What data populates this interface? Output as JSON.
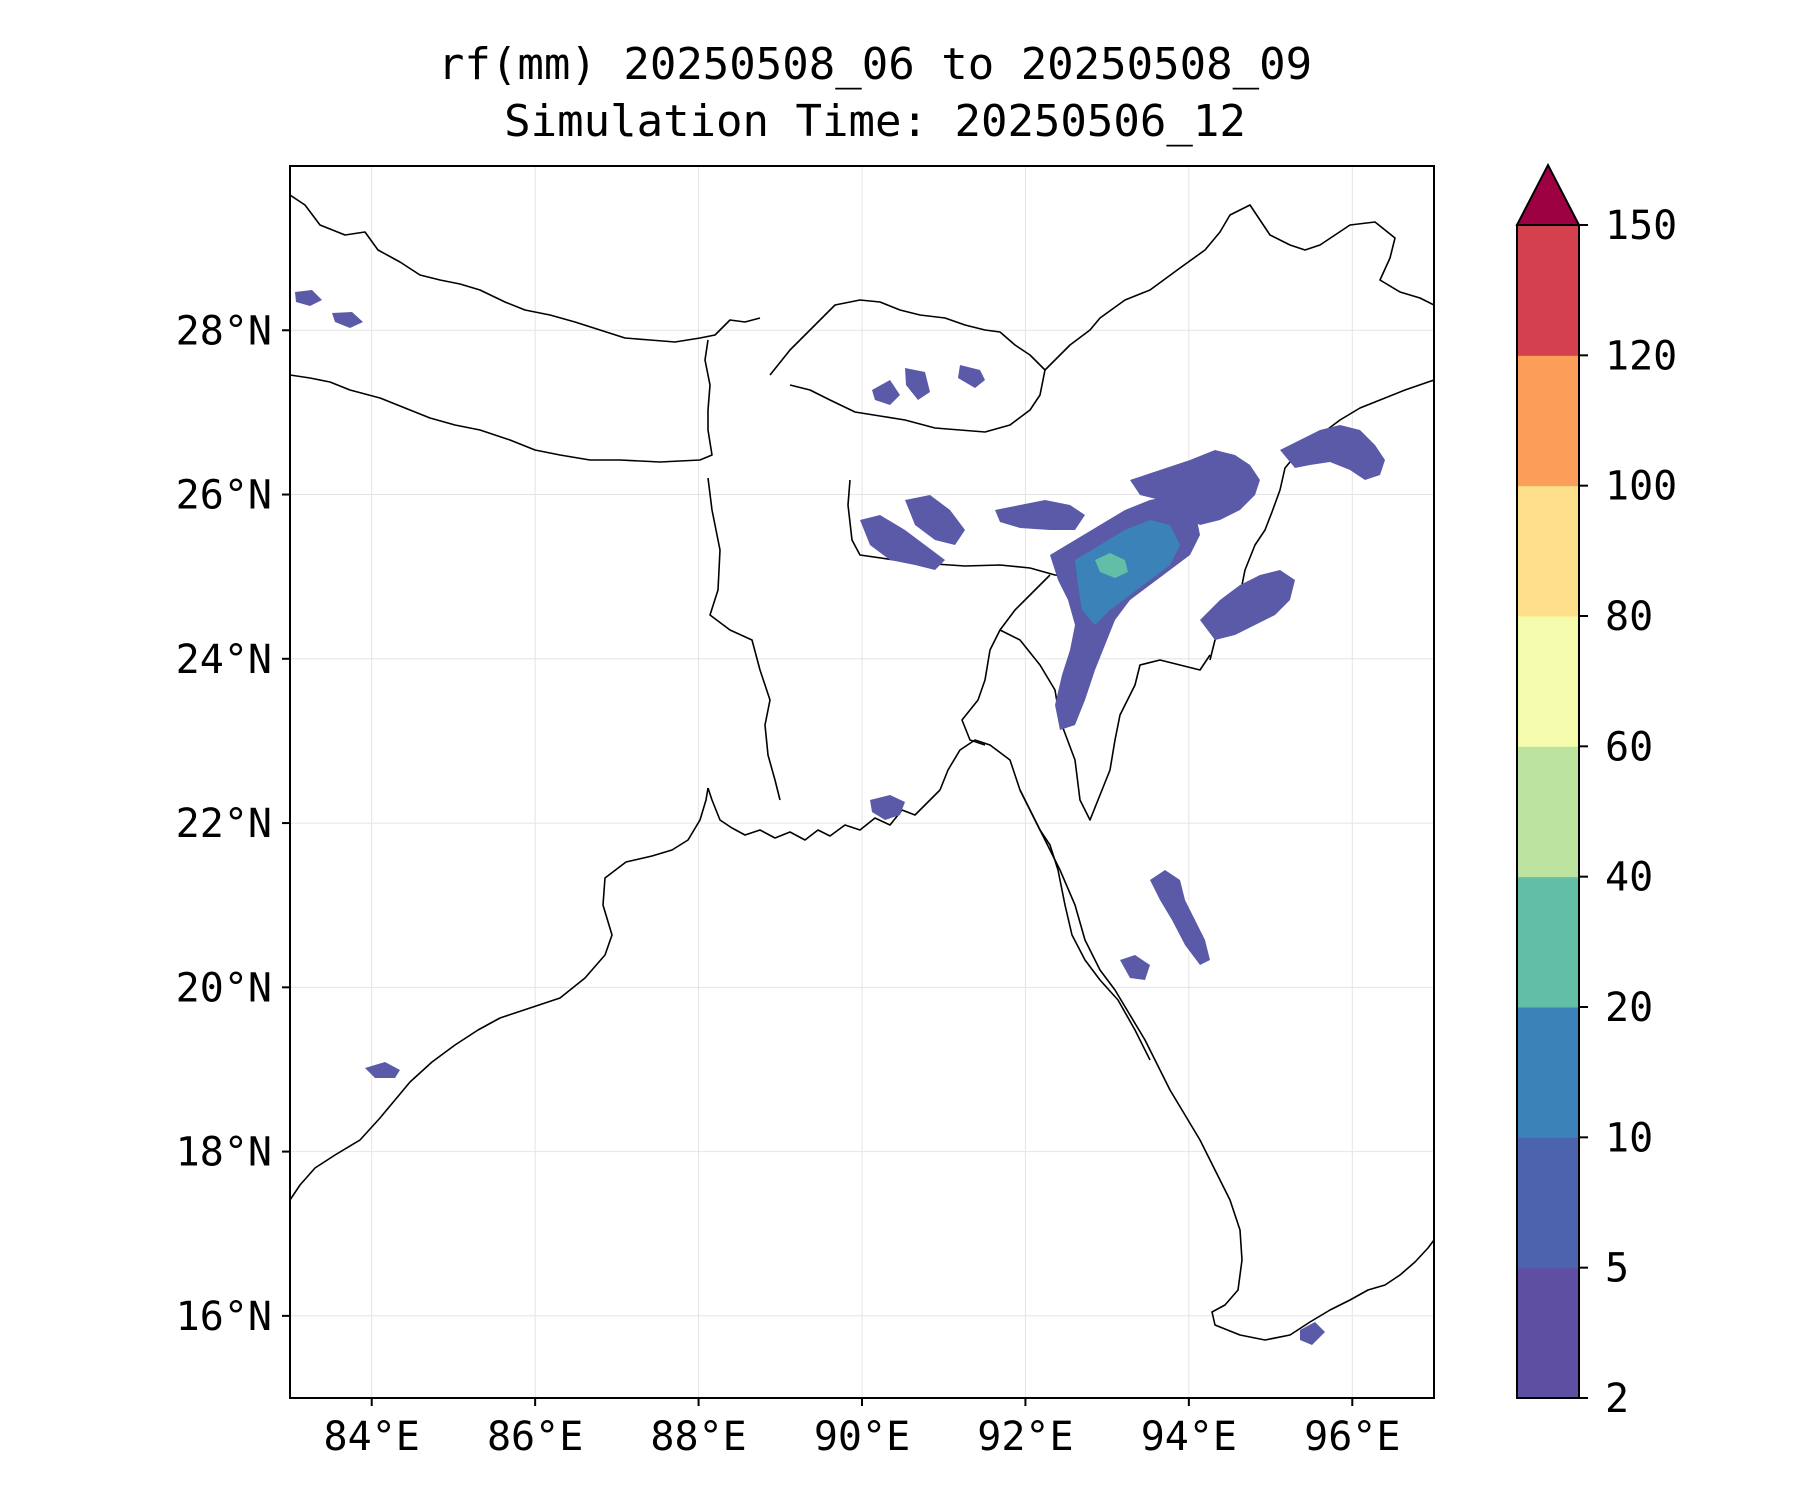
{
  "title": {
    "line1": "rf(mm) 20250508_06 to 20250508_09",
    "line2": "Simulation Time: 20250506_12"
  },
  "map": {
    "lon_range": [
      83,
      97
    ],
    "lat_range": [
      15,
      30
    ],
    "lon_ticks": [
      84,
      86,
      88,
      90,
      92,
      94,
      96
    ],
    "lon_tick_labels": [
      "84°E",
      "86°E",
      "88°E",
      "90°E",
      "92°E",
      "94°E",
      "96°E"
    ],
    "lat_ticks": [
      16,
      18,
      20,
      22,
      24,
      26,
      28
    ],
    "lat_tick_labels": [
      "16°N",
      "18°N",
      "20°N",
      "22°N",
      "24°N",
      "26°N",
      "28°N"
    ],
    "grid": true
  },
  "colorbar": {
    "levels": [
      2,
      5,
      10,
      20,
      40,
      60,
      80,
      100,
      120,
      150
    ],
    "tick_labels": [
      "2",
      "5",
      "10",
      "20",
      "40",
      "60",
      "80",
      "100",
      "120",
      "150"
    ],
    "colors": [
      "#5e4fa2",
      "#4b64ad",
      "#3a82b8",
      "#62bea7",
      "#bde3a0",
      "#f4fbac",
      "#fee08b",
      "#fb9e5a",
      "#d5404e"
    ],
    "extend_color": "#9e0142",
    "extend": "max"
  },
  "rain_color": "#5a5aa8"
}
